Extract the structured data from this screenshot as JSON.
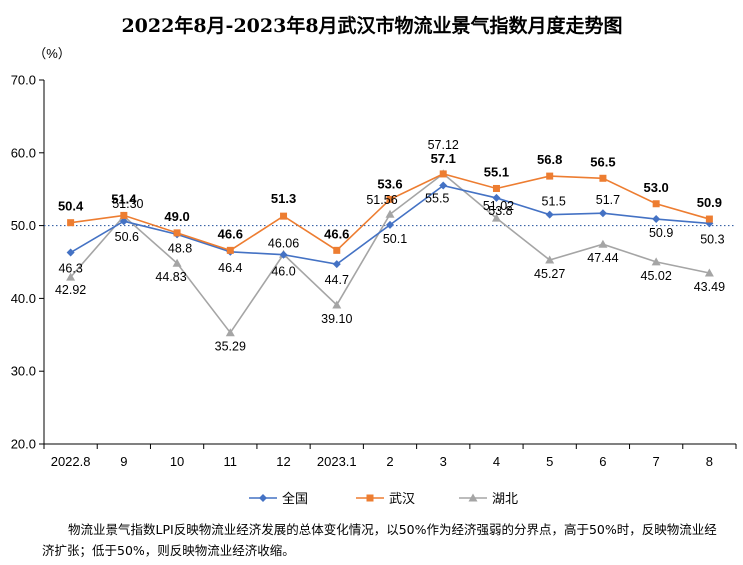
{
  "chart_data": {
    "type": "line",
    "title": "2022年8月-2023年8月武汉市物流业景气指数月度走势图",
    "ylabel": "（%）",
    "ylim": [
      20,
      70
    ],
    "yticks": [
      "20.0",
      "30.0",
      "40.0",
      "50.0",
      "60.0",
      "70.0"
    ],
    "categories": [
      "2022.8",
      "9",
      "10",
      "11",
      "12",
      "2023.1",
      "2",
      "3",
      "4",
      "5",
      "6",
      "7",
      "8"
    ],
    "reference_line": 50,
    "legend_position": "bottom",
    "series": [
      {
        "name": "全国",
        "color": "#4472C4",
        "marker": "diamond",
        "values": [
          46.3,
          50.6,
          48.8,
          46.4,
          46.0,
          44.7,
          50.1,
          55.5,
          53.8,
          51.5,
          51.7,
          50.9,
          50.3
        ],
        "labels": [
          "46.3",
          "50.6",
          "48.8",
          "46.4",
          "46.0",
          "44.7",
          "50.1",
          "55.5",
          "53.8",
          "51.5",
          "51.7",
          "50.9",
          "50.3"
        ]
      },
      {
        "name": "武汉",
        "color": "#ED7D31",
        "marker": "square",
        "values": [
          50.4,
          51.4,
          49.0,
          46.6,
          51.3,
          46.6,
          53.6,
          57.1,
          55.1,
          56.8,
          56.5,
          53.0,
          50.9
        ],
        "labels": [
          "50.4",
          "51.4",
          "49.0",
          "46.6",
          "51.3",
          "46.6",
          "53.6",
          "57.1",
          "55.1",
          "56.8",
          "56.5",
          "53.0",
          "50.9"
        ]
      },
      {
        "name": "湖北",
        "color": "#A5A5A5",
        "marker": "triangle",
        "values": [
          42.92,
          51.3,
          44.83,
          35.29,
          46.06,
          39.1,
          51.56,
          57.12,
          51.02,
          45.27,
          47.44,
          45.02,
          43.49
        ],
        "labels": [
          "42.92",
          "51.30",
          "44.83",
          "35.29",
          "46.06",
          "39.10",
          "51.56",
          "57.12",
          "51.02",
          "45.27",
          "47.44",
          "45.02",
          "43.49"
        ]
      }
    ]
  },
  "footnote": "物流业景气指数LPI反映物流业经济发展的总体变化情况，以50%作为经济强弱的分界点，高于50%时，反映物流业经济扩张；低于50%，则反映物流业经济收缩。"
}
